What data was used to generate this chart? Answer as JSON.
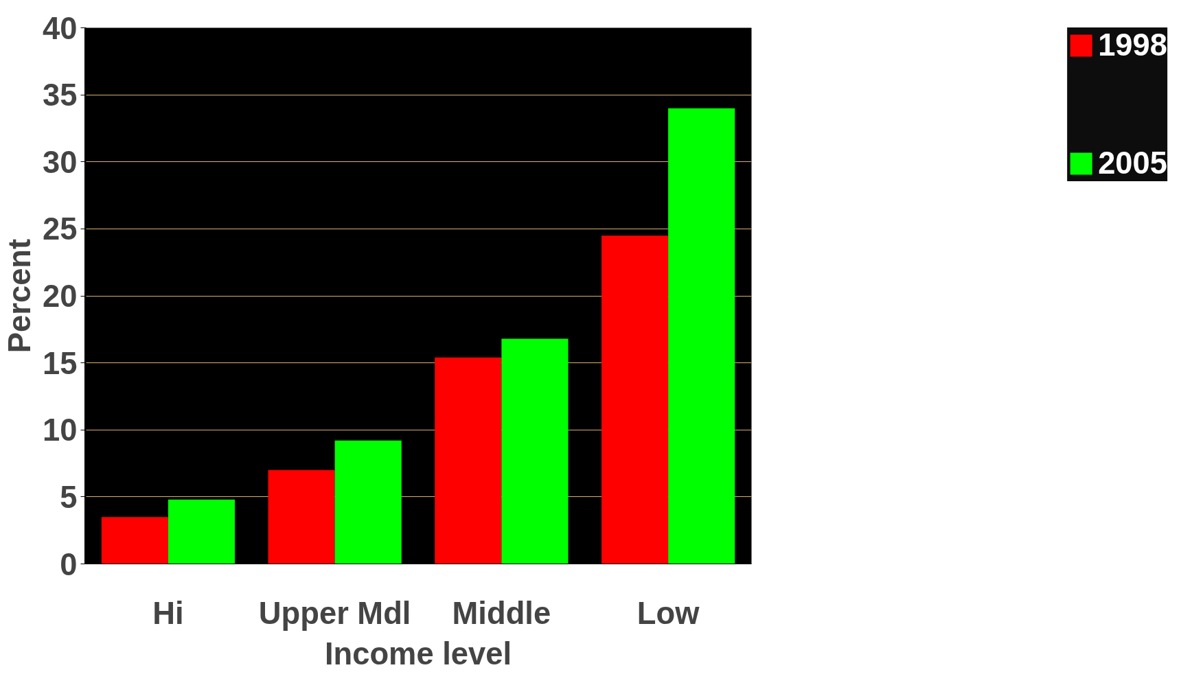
{
  "chart_data": {
    "type": "bar",
    "xlabel": "Income level",
    "ylabel": "Percent",
    "categories": [
      "Hi",
      "Upper Mdl",
      "Middle",
      "Low"
    ],
    "series": [
      {
        "name": "1998",
        "color": "#ff0000",
        "values": [
          3.5,
          7.0,
          15.4,
          24.5
        ]
      },
      {
        "name": "2005",
        "color": "#00ff00",
        "values": [
          4.8,
          9.2,
          16.8,
          34.0
        ]
      }
    ],
    "ylim": [
      0,
      40
    ],
    "yticks": [
      0,
      5,
      10,
      15,
      20,
      25,
      30,
      35,
      40
    ],
    "grid": "y",
    "legend": "right"
  }
}
